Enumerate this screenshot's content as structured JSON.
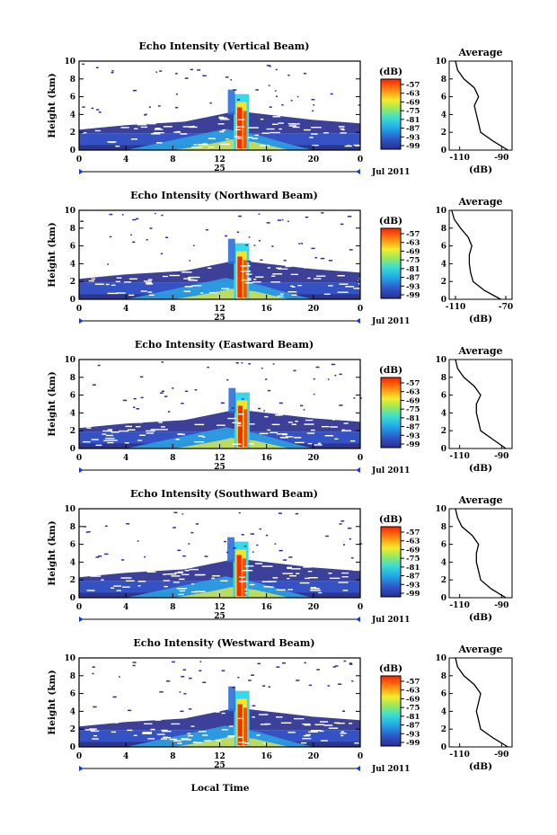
{
  "figure": {
    "date_label": "Jul 2011",
    "day_label": "25",
    "x_axis_label": "Local Time",
    "colorbar_unit": "(dB)",
    "colorbar_ticks": [
      "-57",
      "-63",
      "-69",
      "-75",
      "-81",
      "-87",
      "-93",
      "-99"
    ],
    "colors": {
      "low": "#2a2f8a",
      "mid": "#22c0e8",
      "high": "#ff2a00",
      "line": "#000000"
    }
  },
  "chart_data": [
    {
      "type": "heatmap",
      "title": "Echo Intensity (Vertical Beam)",
      "ylabel": "Height (km)",
      "xlim": [
        0,
        24
      ],
      "ylim": [
        0,
        10
      ],
      "x_ticks": [
        "0",
        "4",
        "8",
        "12",
        "16",
        "20",
        "0"
      ],
      "y_ticks": [
        "0",
        "2",
        "4",
        "6",
        "8",
        "10"
      ],
      "color_scale_db": [
        -99,
        -57
      ],
      "profile": {
        "title": "Average",
        "xlabel": "(dB)",
        "x_ticks": [
          "-110",
          "-90"
        ],
        "xlim": [
          -115,
          -85
        ],
        "y_ticks": [
          "0",
          "2",
          "4",
          "6",
          "8",
          "10"
        ],
        "heights": [
          0,
          1,
          2,
          3,
          4,
          5,
          6,
          7,
          8,
          9,
          10
        ],
        "values": [
          -87,
          -94,
          -100,
          -101,
          -102,
          -103,
          -101,
          -103,
          -108,
          -111,
          -112
        ]
      }
    },
    {
      "type": "heatmap",
      "title": "Echo Intensity (Northward Beam)",
      "ylabel": "Height (km)",
      "xlim": [
        0,
        24
      ],
      "ylim": [
        0,
        10
      ],
      "x_ticks": [
        "0",
        "4",
        "8",
        "12",
        "16",
        "20",
        "0"
      ],
      "y_ticks": [
        "0",
        "2",
        "4",
        "6",
        "8",
        "10"
      ],
      "color_scale_db": [
        -99,
        -57
      ],
      "profile": {
        "title": "Average",
        "xlabel": "(dB)",
        "x_ticks": [
          "-110",
          "-70"
        ],
        "xlim": [
          -115,
          -65
        ],
        "y_ticks": [
          "0",
          "2",
          "4",
          "6",
          "8",
          "10"
        ],
        "heights": [
          0,
          1,
          2,
          3,
          4,
          5,
          6,
          7,
          8,
          9,
          10
        ],
        "values": [
          -74,
          -87,
          -96,
          -98,
          -99,
          -99,
          -97,
          -100,
          -106,
          -111,
          -113
        ]
      }
    },
    {
      "type": "heatmap",
      "title": "Echo Intensity (Eastward Beam)",
      "ylabel": "Height (km)",
      "xlim": [
        0,
        24
      ],
      "ylim": [
        0,
        10
      ],
      "x_ticks": [
        "0",
        "4",
        "8",
        "12",
        "16",
        "20",
        "0"
      ],
      "y_ticks": [
        "0",
        "2",
        "4",
        "6",
        "8",
        "10"
      ],
      "color_scale_db": [
        -99,
        -57
      ],
      "profile": {
        "title": "Average",
        "xlabel": "(dB)",
        "x_ticks": [
          "-110",
          "-90"
        ],
        "xlim": [
          -115,
          -85
        ],
        "y_ticks": [
          "0",
          "2",
          "4",
          "6",
          "8",
          "10"
        ],
        "heights": [
          0,
          1,
          2,
          3,
          4,
          5,
          6,
          7,
          8,
          9,
          10
        ],
        "values": [
          -88,
          -94,
          -100,
          -101,
          -102,
          -102,
          -100,
          -103,
          -108,
          -111,
          -112
        ]
      }
    },
    {
      "type": "heatmap",
      "title": "Echo Intensity (Southward Beam)",
      "ylabel": "Height (km)",
      "xlim": [
        0,
        24
      ],
      "ylim": [
        0,
        10
      ],
      "x_ticks": [
        "0",
        "4",
        "8",
        "12",
        "16",
        "20",
        "0"
      ],
      "y_ticks": [
        "0",
        "2",
        "4",
        "6",
        "8",
        "10"
      ],
      "color_scale_db": [
        -99,
        -57
      ],
      "profile": {
        "title": "Average",
        "xlabel": "(dB)",
        "x_ticks": [
          "-110",
          "-90"
        ],
        "xlim": [
          -115,
          -85
        ],
        "y_ticks": [
          "0",
          "2",
          "4",
          "6",
          "8",
          "10"
        ],
        "heights": [
          0,
          1,
          2,
          3,
          4,
          5,
          6,
          7,
          8,
          9,
          10
        ],
        "values": [
          -88,
          -95,
          -100,
          -101,
          -102,
          -102,
          -101,
          -104,
          -109,
          -111,
          -112
        ]
      }
    },
    {
      "type": "heatmap",
      "title": "Echo Intensity (Westward Beam)",
      "ylabel": "Height (km)",
      "xlim": [
        0,
        24
      ],
      "ylim": [
        0,
        10
      ],
      "x_ticks": [
        "0",
        "4",
        "8",
        "12",
        "16",
        "20",
        "0"
      ],
      "y_ticks": [
        "0",
        "2",
        "4",
        "6",
        "8",
        "10"
      ],
      "color_scale_db": [
        -99,
        -57
      ],
      "profile": {
        "title": "Average",
        "xlabel": "(dB)",
        "x_ticks": [
          "-110",
          "-90"
        ],
        "xlim": [
          -115,
          -85
        ],
        "y_ticks": [
          "0",
          "2",
          "4",
          "6",
          "8",
          "10"
        ],
        "heights": [
          0,
          1,
          2,
          3,
          4,
          5,
          6,
          7,
          8,
          9,
          10
        ],
        "values": [
          -87,
          -94,
          -100,
          -101,
          -102,
          -101,
          -100,
          -103,
          -108,
          -111,
          -112
        ]
      }
    }
  ]
}
